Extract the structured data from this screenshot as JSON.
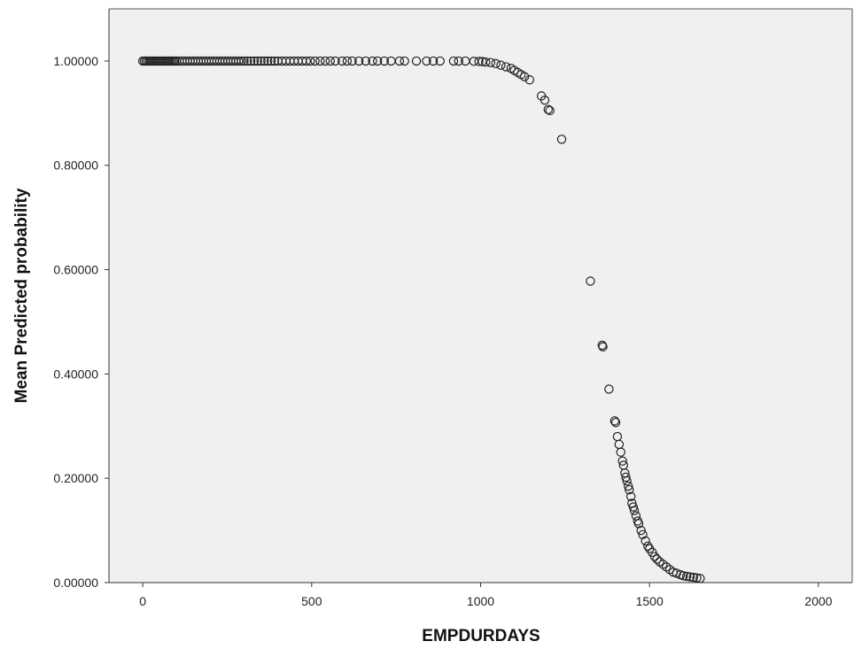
{
  "chart_data": {
    "type": "scatter",
    "title": "",
    "xlabel": "EMPDURDAYS",
    "ylabel": "Mean Predicted probability",
    "xlim": [
      -100,
      2100
    ],
    "ylim": [
      0,
      1.1
    ],
    "x_ticks": [
      0,
      500,
      1000,
      1500,
      2000
    ],
    "x_tick_labels": [
      "0",
      "500",
      "1000",
      "1500",
      "2000"
    ],
    "y_ticks": [
      0,
      0.2,
      0.4,
      0.6,
      0.8,
      1.0
    ],
    "y_tick_labels": [
      "0.00000",
      "0.20000",
      "0.40000",
      "0.60000",
      "0.80000",
      "1.00000"
    ],
    "grid": false,
    "legend": "none",
    "colors": {
      "plot_background": "#f0f0f0",
      "marker_edge": "#222222",
      "axis": "#333333"
    },
    "series": [
      {
        "marker": "open-circle",
        "points": [
          [
            0,
            1.0
          ],
          [
            5,
            1.0
          ],
          [
            10,
            1.0
          ],
          [
            15,
            1.0
          ],
          [
            20,
            1.0
          ],
          [
            25,
            1.0
          ],
          [
            30,
            1.0
          ],
          [
            35,
            1.0
          ],
          [
            40,
            1.0
          ],
          [
            45,
            1.0
          ],
          [
            50,
            1.0
          ],
          [
            55,
            1.0
          ],
          [
            60,
            1.0
          ],
          [
            65,
            1.0
          ],
          [
            70,
            1.0
          ],
          [
            75,
            1.0
          ],
          [
            80,
            1.0
          ],
          [
            85,
            1.0
          ],
          [
            90,
            1.0
          ],
          [
            95,
            1.0
          ],
          [
            100,
            1.0
          ],
          [
            108,
            1.0
          ],
          [
            116,
            1.0
          ],
          [
            124,
            1.0
          ],
          [
            132,
            1.0
          ],
          [
            140,
            1.0
          ],
          [
            148,
            1.0
          ],
          [
            156,
            1.0
          ],
          [
            164,
            1.0
          ],
          [
            172,
            1.0
          ],
          [
            180,
            1.0
          ],
          [
            188,
            1.0
          ],
          [
            196,
            1.0
          ],
          [
            204,
            1.0
          ],
          [
            212,
            1.0
          ],
          [
            220,
            1.0
          ],
          [
            228,
            1.0
          ],
          [
            236,
            1.0
          ],
          [
            244,
            1.0
          ],
          [
            252,
            1.0
          ],
          [
            260,
            1.0
          ],
          [
            268,
            1.0
          ],
          [
            276,
            1.0
          ],
          [
            284,
            1.0
          ],
          [
            292,
            1.0
          ],
          [
            300,
            1.0
          ],
          [
            310,
            1.0
          ],
          [
            320,
            1.0
          ],
          [
            330,
            1.0
          ],
          [
            340,
            1.0
          ],
          [
            350,
            1.0
          ],
          [
            360,
            1.0
          ],
          [
            370,
            1.0
          ],
          [
            380,
            1.0
          ],
          [
            390,
            1.0
          ],
          [
            400,
            1.0
          ],
          [
            412,
            1.0
          ],
          [
            424,
            1.0
          ],
          [
            436,
            1.0
          ],
          [
            448,
            1.0
          ],
          [
            460,
            1.0
          ],
          [
            472,
            1.0
          ],
          [
            484,
            1.0
          ],
          [
            496,
            1.0
          ],
          [
            510,
            1.0
          ],
          [
            525,
            1.0
          ],
          [
            540,
            1.0
          ],
          [
            555,
            1.0
          ],
          [
            570,
            1.0
          ],
          [
            590,
            1.0
          ],
          [
            605,
            1.0
          ],
          [
            620,
            1.0
          ],
          [
            640,
            1.0
          ],
          [
            660,
            1.0
          ],
          [
            680,
            1.0
          ],
          [
            695,
            1.0
          ],
          [
            715,
            1.0
          ],
          [
            735,
            1.0
          ],
          [
            760,
            1.0
          ],
          [
            775,
            1.0
          ],
          [
            810,
            1.0
          ],
          [
            840,
            1.0
          ],
          [
            860,
            1.0
          ],
          [
            880,
            1.0
          ],
          [
            920,
            1.0
          ],
          [
            935,
            1.0
          ],
          [
            955,
            1.0
          ],
          [
            980,
            0.9995
          ],
          [
            995,
            0.9992
          ],
          [
            1005,
            0.999
          ],
          [
            1015,
            0.998
          ],
          [
            1030,
            0.997
          ],
          [
            1045,
            0.995
          ],
          [
            1060,
            0.992
          ],
          [
            1075,
            0.989
          ],
          [
            1090,
            0.986
          ],
          [
            1100,
            0.982
          ],
          [
            1110,
            0.978
          ],
          [
            1120,
            0.974
          ],
          [
            1130,
            0.97
          ],
          [
            1145,
            0.964
          ],
          [
            1180,
            0.933
          ],
          [
            1190,
            0.925
          ],
          [
            1200,
            0.907
          ],
          [
            1205,
            0.905
          ],
          [
            1240,
            0.85
          ],
          [
            1325,
            0.578
          ],
          [
            1360,
            0.455
          ],
          [
            1362,
            0.452
          ],
          [
            1380,
            0.371
          ],
          [
            1397,
            0.31
          ],
          [
            1400,
            0.307
          ],
          [
            1405,
            0.28
          ],
          [
            1410,
            0.265
          ],
          [
            1415,
            0.25
          ],
          [
            1420,
            0.233
          ],
          [
            1423,
            0.225
          ],
          [
            1427,
            0.21
          ],
          [
            1430,
            0.202
          ],
          [
            1433,
            0.195
          ],
          [
            1437,
            0.185
          ],
          [
            1440,
            0.178
          ],
          [
            1445,
            0.165
          ],
          [
            1448,
            0.152
          ],
          [
            1452,
            0.145
          ],
          [
            1455,
            0.138
          ],
          [
            1460,
            0.128
          ],
          [
            1465,
            0.118
          ],
          [
            1468,
            0.113
          ],
          [
            1475,
            0.1
          ],
          [
            1480,
            0.092
          ],
          [
            1488,
            0.08
          ],
          [
            1495,
            0.07
          ],
          [
            1500,
            0.065
          ],
          [
            1508,
            0.058
          ],
          [
            1515,
            0.05
          ],
          [
            1522,
            0.045
          ],
          [
            1530,
            0.04
          ],
          [
            1540,
            0.035
          ],
          [
            1550,
            0.03
          ],
          [
            1560,
            0.025
          ],
          [
            1570,
            0.02
          ],
          [
            1580,
            0.018
          ],
          [
            1592,
            0.015
          ],
          [
            1600,
            0.013
          ],
          [
            1610,
            0.012
          ],
          [
            1620,
            0.011
          ],
          [
            1630,
            0.01
          ],
          [
            1640,
            0.009
          ],
          [
            1650,
            0.008
          ]
        ]
      }
    ]
  }
}
